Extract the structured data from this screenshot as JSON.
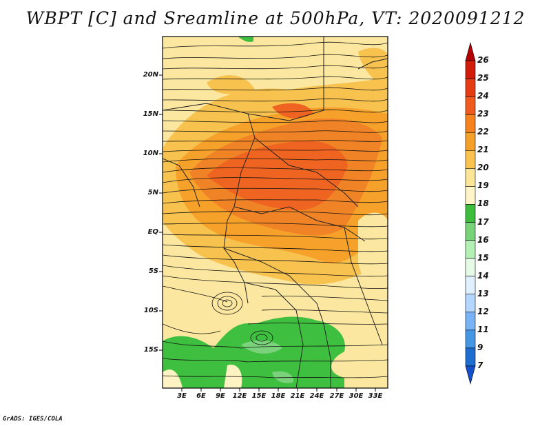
{
  "title": "WBPT [C] and Sreamline at 500hPa, VT: 2020091212",
  "credit": "GrADS: IGES/COLA",
  "map": {
    "lat_labels": [
      "20N",
      "15N",
      "10N",
      "5N",
      "EQ",
      "5S",
      "10S",
      "15S"
    ],
    "lon_labels": [
      "3E",
      "6E",
      "9E",
      "12E",
      "15E",
      "18E",
      "21E",
      "24E",
      "27E",
      "30E",
      "33E"
    ]
  },
  "colorbar": {
    "labels": [
      "26",
      "25",
      "24",
      "23",
      "22",
      "21",
      "20",
      "19",
      "18",
      "17",
      "16",
      "15",
      "14",
      "13",
      "12",
      "11",
      "9",
      "7"
    ],
    "colors": [
      "#b40000",
      "#d21c0a",
      "#e63c14",
      "#f05a1e",
      "#f5821e",
      "#f5a028",
      "#fac350",
      "#fae696",
      "#fff5c8",
      "#3cbe3c",
      "#78d278",
      "#b4f0b4",
      "#e6fae6",
      "#e1f0ff",
      "#b4d7ff",
      "#78b4f5",
      "#4696e6",
      "#1e6ed2",
      "#1450c8"
    ]
  }
}
